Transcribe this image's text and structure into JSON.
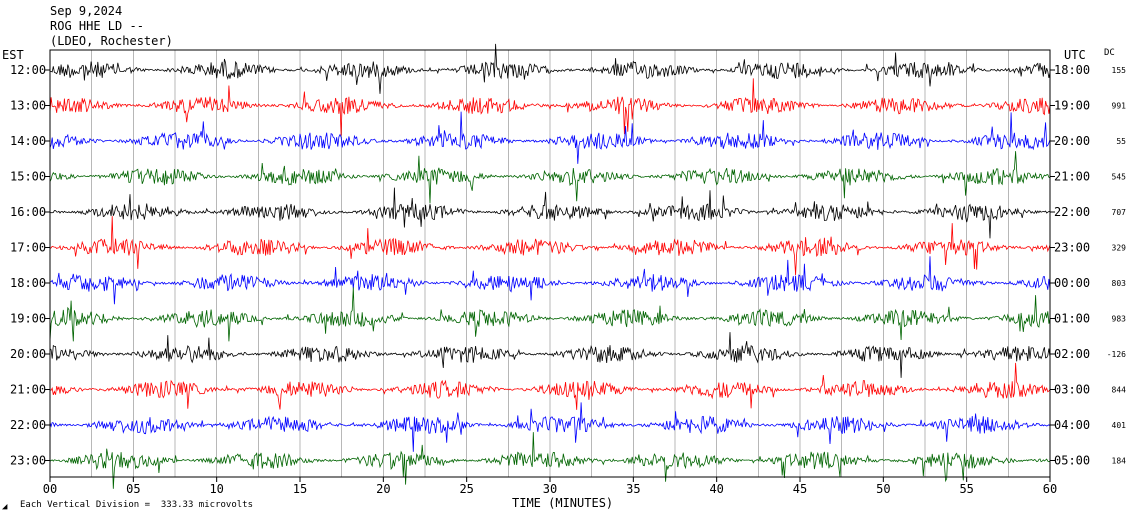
{
  "header": {
    "date": "Sep 9,2024",
    "station": "ROG HHE LD --",
    "network": "(LDEO, Rochester)"
  },
  "axes": {
    "left_title": "EST",
    "right_title": "UTC",
    "dc_title": "DC",
    "x_title": "TIME (MINUTES)"
  },
  "footer": {
    "scale_note": "Each Vertical Division =  333.33 microvolts"
  },
  "colors": {
    "black": "#000000",
    "red": "#ff0000",
    "blue": "#0000ff",
    "green": "#006400"
  },
  "chart_data": {
    "type": "line",
    "x_axis": {
      "range": [
        0,
        60
      ],
      "ticks": [
        "00",
        "05",
        "10",
        "15",
        "20",
        "25",
        "30",
        "35",
        "40",
        "45",
        "50",
        "55",
        "60"
      ]
    },
    "rows": [
      {
        "est": "12:00",
        "utc": "18:00",
        "dc": "155",
        "color": "black"
      },
      {
        "est": "13:00",
        "utc": "19:00",
        "dc": "991",
        "color": "red"
      },
      {
        "est": "14:00",
        "utc": "20:00",
        "dc": "55",
        "color": "blue"
      },
      {
        "est": "15:00",
        "utc": "21:00",
        "dc": "545",
        "color": "green"
      },
      {
        "est": "16:00",
        "utc": "22:00",
        "dc": "707",
        "color": "black"
      },
      {
        "est": "17:00",
        "utc": "23:00",
        "dc": "329",
        "color": "red"
      },
      {
        "est": "18:00",
        "utc": "00:00",
        "dc": "803",
        "color": "blue"
      },
      {
        "est": "19:00",
        "utc": "01:00",
        "dc": "983",
        "color": "green"
      },
      {
        "est": "20:00",
        "utc": "02:00",
        "dc": "-126",
        "color": "black"
      },
      {
        "est": "21:00",
        "utc": "03:00",
        "dc": "844",
        "color": "red"
      },
      {
        "est": "22:00",
        "utc": "04:00",
        "dc": "401",
        "color": "blue"
      },
      {
        "est": "23:00",
        "utc": "05:00",
        "dc": "184",
        "color": "green"
      }
    ]
  }
}
